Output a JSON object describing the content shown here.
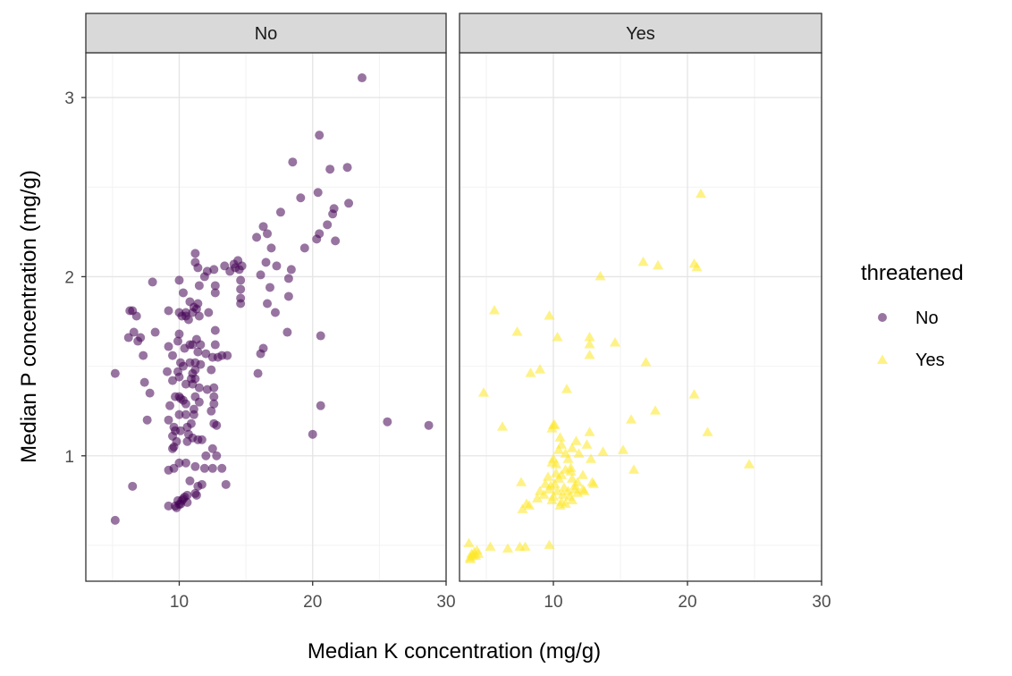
{
  "chart_data": {
    "type": "scatter",
    "xlabel": "Median K concentration (mg/g)",
    "ylabel": "Median P concentration (mg/g)",
    "xlim": [
      3,
      30
    ],
    "ylim": [
      0.3,
      3.25
    ],
    "x_ticks": [
      10,
      20,
      30
    ],
    "y_ticks": [
      1,
      2,
      3
    ],
    "grid": true,
    "legend": {
      "title": "threatened",
      "position": "right",
      "entries": [
        {
          "label": "No",
          "color": "#440154",
          "shape": "circle"
        },
        {
          "label": "Yes",
          "color": "#FDE725",
          "shape": "triangle"
        }
      ]
    },
    "facets": [
      {
        "label": "No",
        "color": "#440154",
        "shape": "circle",
        "points": [
          [
            23.7,
            3.11
          ],
          [
            20.5,
            2.79
          ],
          [
            18.5,
            2.64
          ],
          [
            20.4,
            2.47
          ],
          [
            22.6,
            2.61
          ],
          [
            21.3,
            2.6
          ],
          [
            19.1,
            2.44
          ],
          [
            21.6,
            2.38
          ],
          [
            21.5,
            2.35
          ],
          [
            22.7,
            2.41
          ],
          [
            17.6,
            2.36
          ],
          [
            21.1,
            2.29
          ],
          [
            16.3,
            2.28
          ],
          [
            16.6,
            2.24
          ],
          [
            15.8,
            2.22
          ],
          [
            20.5,
            2.24
          ],
          [
            20.3,
            2.21
          ],
          [
            21.7,
            2.2
          ],
          [
            19.4,
            2.16
          ],
          [
            11.2,
            2.13
          ],
          [
            16.9,
            2.16
          ],
          [
            11.2,
            2.08
          ],
          [
            14.4,
            2.09
          ],
          [
            11.4,
            2.05
          ],
          [
            13.4,
            2.06
          ],
          [
            14.1,
            2.07
          ],
          [
            14.2,
            2.05
          ],
          [
            14.7,
            2.06
          ],
          [
            16.5,
            2.08
          ],
          [
            17.3,
            2.06
          ],
          [
            12.1,
            2.03
          ],
          [
            12.6,
            2.04
          ],
          [
            11.9,
            2.0
          ],
          [
            13.8,
            2.03
          ],
          [
            14.5,
            2.04
          ],
          [
            16.1,
            2.01
          ],
          [
            18.4,
            2.04
          ],
          [
            14.6,
            1.98
          ],
          [
            18.2,
            1.99
          ],
          [
            8.0,
            1.97
          ],
          [
            10.0,
            1.98
          ],
          [
            11.5,
            1.95
          ],
          [
            12.7,
            1.95
          ],
          [
            14.6,
            1.93
          ],
          [
            10.3,
            1.91
          ],
          [
            12.7,
            1.91
          ],
          [
            16.8,
            1.94
          ],
          [
            14.6,
            1.88
          ],
          [
            18.2,
            1.89
          ],
          [
            10.8,
            1.86
          ],
          [
            11.4,
            1.85
          ],
          [
            14.6,
            1.85
          ],
          [
            16.6,
            1.85
          ],
          [
            9.2,
            1.81
          ],
          [
            11.1,
            1.83
          ],
          [
            11.3,
            1.82
          ],
          [
            11.0,
            1.8
          ],
          [
            10.5,
            1.8
          ],
          [
            10.0,
            1.8
          ],
          [
            6.3,
            1.81
          ],
          [
            6.5,
            1.81
          ],
          [
            12.2,
            1.8
          ],
          [
            17.2,
            1.8
          ],
          [
            10.2,
            1.78
          ],
          [
            11.5,
            1.78
          ],
          [
            6.8,
            1.78
          ],
          [
            10.7,
            1.76
          ],
          [
            12.7,
            1.7
          ],
          [
            6.2,
            1.66
          ],
          [
            6.6,
            1.69
          ],
          [
            10.0,
            1.68
          ],
          [
            7.1,
            1.66
          ],
          [
            8.2,
            1.69
          ],
          [
            6.9,
            1.64
          ],
          [
            18.1,
            1.69
          ],
          [
            20.6,
            1.67
          ],
          [
            16.3,
            1.6
          ],
          [
            16.1,
            1.57
          ],
          [
            11.3,
            1.65
          ],
          [
            9.9,
            1.64
          ],
          [
            10.8,
            1.62
          ],
          [
            11.0,
            1.62
          ],
          [
            12.7,
            1.62
          ],
          [
            9.2,
            1.61
          ],
          [
            10.4,
            1.6
          ],
          [
            9.5,
            1.56
          ],
          [
            11.4,
            1.58
          ],
          [
            12.0,
            1.57
          ],
          [
            12.5,
            1.55
          ],
          [
            13.2,
            1.56
          ],
          [
            13.6,
            1.56
          ],
          [
            12.9,
            1.55
          ],
          [
            10.1,
            1.52
          ],
          [
            10.3,
            1.5
          ],
          [
            10.8,
            1.52
          ],
          [
            11.2,
            1.52
          ],
          [
            11.6,
            1.51
          ],
          [
            7.3,
            1.56
          ],
          [
            9.9,
            1.47
          ],
          [
            11.2,
            1.48
          ],
          [
            12.4,
            1.48
          ],
          [
            5.2,
            1.46
          ],
          [
            9.1,
            1.47
          ],
          [
            15.9,
            1.46
          ],
          [
            10.0,
            1.44
          ],
          [
            11.0,
            1.46
          ],
          [
            10.9,
            1.43
          ],
          [
            11.2,
            1.43
          ],
          [
            9.5,
            1.42
          ],
          [
            7.4,
            1.41
          ],
          [
            10.5,
            1.4
          ],
          [
            11.0,
            1.4
          ],
          [
            11.5,
            1.38
          ],
          [
            12.1,
            1.37
          ],
          [
            9.7,
            1.33
          ],
          [
            10.0,
            1.33
          ],
          [
            10.1,
            1.32
          ],
          [
            10.3,
            1.31
          ],
          [
            11.2,
            1.33
          ],
          [
            12.6,
            1.38
          ],
          [
            12.6,
            1.33
          ],
          [
            7.8,
            1.35
          ],
          [
            10.5,
            1.29
          ],
          [
            11.5,
            1.3
          ],
          [
            12.6,
            1.29
          ],
          [
            9.3,
            1.28
          ],
          [
            11.1,
            1.26
          ],
          [
            20.6,
            1.28
          ],
          [
            10.0,
            1.23
          ],
          [
            10.5,
            1.23
          ],
          [
            11.1,
            1.23
          ],
          [
            12.4,
            1.25
          ],
          [
            9.2,
            1.2
          ],
          [
            7.6,
            1.2
          ],
          [
            12.6,
            1.18
          ],
          [
            12.8,
            1.17
          ],
          [
            10.9,
            1.18
          ],
          [
            10.6,
            1.16
          ],
          [
            9.6,
            1.16
          ],
          [
            9.7,
            1.14
          ],
          [
            10.1,
            1.14
          ],
          [
            10.7,
            1.12
          ],
          [
            9.5,
            1.11
          ],
          [
            11.0,
            1.1
          ],
          [
            11.7,
            1.09
          ],
          [
            9.8,
            1.08
          ],
          [
            10.6,
            1.08
          ],
          [
            11.4,
            1.09
          ],
          [
            9.6,
            1.05
          ],
          [
            9.5,
            1.04
          ],
          [
            12.5,
            1.04
          ],
          [
            12.0,
            1.0
          ],
          [
            12.8,
            1.0
          ],
          [
            10.5,
            0.96
          ],
          [
            11.2,
            0.94
          ],
          [
            11.9,
            0.93
          ],
          [
            12.5,
            0.93
          ],
          [
            9.2,
            0.92
          ],
          [
            9.6,
            0.93
          ],
          [
            10.0,
            0.96
          ],
          [
            13.2,
            0.93
          ],
          [
            10.8,
            0.86
          ],
          [
            11.7,
            0.84
          ],
          [
            11.4,
            0.83
          ],
          [
            13.5,
            0.84
          ],
          [
            6.5,
            0.83
          ],
          [
            10.6,
            0.78
          ],
          [
            11.2,
            0.79
          ],
          [
            11.3,
            0.78
          ],
          [
            10.3,
            0.76
          ],
          [
            10.4,
            0.77
          ],
          [
            10.2,
            0.75
          ],
          [
            9.9,
            0.75
          ],
          [
            10.1,
            0.73
          ],
          [
            10.6,
            0.74
          ],
          [
            10.0,
            0.73
          ],
          [
            9.7,
            0.72
          ],
          [
            9.2,
            0.72
          ],
          [
            9.8,
            0.71
          ],
          [
            5.2,
            0.64
          ],
          [
            25.6,
            1.19
          ],
          [
            28.7,
            1.17
          ],
          [
            20.0,
            1.12
          ],
          [
            10.5,
            1.78
          ],
          [
            11.6,
            1.62
          ]
        ]
      },
      {
        "label": "Yes",
        "color": "#FDE725",
        "shape": "triangle",
        "points": [
          [
            21.0,
            2.46
          ],
          [
            16.7,
            2.08
          ],
          [
            17.8,
            2.06
          ],
          [
            20.5,
            2.07
          ],
          [
            20.7,
            2.05
          ],
          [
            13.5,
            2.0
          ],
          [
            5.6,
            1.81
          ],
          [
            9.7,
            1.78
          ],
          [
            7.3,
            1.69
          ],
          [
            10.3,
            1.66
          ],
          [
            12.7,
            1.66
          ],
          [
            12.7,
            1.62
          ],
          [
            14.6,
            1.63
          ],
          [
            12.7,
            1.56
          ],
          [
            16.9,
            1.52
          ],
          [
            9.0,
            1.48
          ],
          [
            8.3,
            1.46
          ],
          [
            11.0,
            1.37
          ],
          [
            4.8,
            1.35
          ],
          [
            20.5,
            1.34
          ],
          [
            17.6,
            1.25
          ],
          [
            15.8,
            1.2
          ],
          [
            6.2,
            1.16
          ],
          [
            10.0,
            1.17
          ],
          [
            9.9,
            1.15
          ],
          [
            10.1,
            1.17
          ],
          [
            12.7,
            1.13
          ],
          [
            21.5,
            1.13
          ],
          [
            10.5,
            1.1
          ],
          [
            10.6,
            1.06
          ],
          [
            11.7,
            1.08
          ],
          [
            12.5,
            1.06
          ],
          [
            10.4,
            1.03
          ],
          [
            11.4,
            1.04
          ],
          [
            13.7,
            1.02
          ],
          [
            15.2,
            1.03
          ],
          [
            10.9,
            1.01
          ],
          [
            11.9,
            1.01
          ],
          [
            10.0,
            0.98
          ],
          [
            9.9,
            0.96
          ],
          [
            10.2,
            0.95
          ],
          [
            11.1,
            0.98
          ],
          [
            12.8,
            0.98
          ],
          [
            24.6,
            0.95
          ],
          [
            11.3,
            0.93
          ],
          [
            10.9,
            0.92
          ],
          [
            16.0,
            0.92
          ],
          [
            10.2,
            0.9
          ],
          [
            10.6,
            0.89
          ],
          [
            11.3,
            0.91
          ],
          [
            12.2,
            0.89
          ],
          [
            9.6,
            0.88
          ],
          [
            10.4,
            0.87
          ],
          [
            11.4,
            0.87
          ],
          [
            7.6,
            0.85
          ],
          [
            9.4,
            0.84
          ],
          [
            10.1,
            0.84
          ],
          [
            11.8,
            0.85
          ],
          [
            12.9,
            0.85
          ],
          [
            9.8,
            0.83
          ],
          [
            10.8,
            0.82
          ],
          [
            11.6,
            0.83
          ],
          [
            13.0,
            0.84
          ],
          [
            9.0,
            0.8
          ],
          [
            9.7,
            0.81
          ],
          [
            10.3,
            0.8
          ],
          [
            11.1,
            0.8
          ],
          [
            11.6,
            0.81
          ],
          [
            12.3,
            0.8
          ],
          [
            12.2,
            0.81
          ],
          [
            9.3,
            0.78
          ],
          [
            10.0,
            0.77
          ],
          [
            10.7,
            0.78
          ],
          [
            11.2,
            0.77
          ],
          [
            11.8,
            0.79
          ],
          [
            8.8,
            0.76
          ],
          [
            9.9,
            0.75
          ],
          [
            10.6,
            0.74
          ],
          [
            10.9,
            0.73
          ],
          [
            11.4,
            0.75
          ],
          [
            8.0,
            0.73
          ],
          [
            8.2,
            0.72
          ],
          [
            7.7,
            0.7
          ],
          [
            10.5,
            0.72
          ],
          [
            3.7,
            0.51
          ],
          [
            5.3,
            0.49
          ],
          [
            7.5,
            0.49
          ],
          [
            6.6,
            0.48
          ],
          [
            7.9,
            0.49
          ],
          [
            9.7,
            0.5
          ],
          [
            3.9,
            0.45
          ],
          [
            4.1,
            0.46
          ],
          [
            4.3,
            0.47
          ],
          [
            3.8,
            0.43
          ],
          [
            4.0,
            0.44
          ],
          [
            4.4,
            0.45
          ],
          [
            4.2,
            0.44
          ],
          [
            3.8,
            0.42
          ]
        ]
      }
    ]
  }
}
